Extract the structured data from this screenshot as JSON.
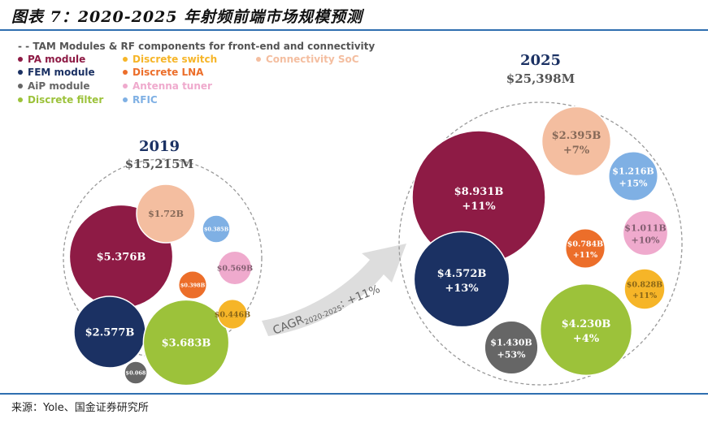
{
  "figure": {
    "title": "图表 7：2020-2025 年射频前端市场规模预测",
    "source": "来源：Yole、国金证券研究所"
  },
  "legend": {
    "header": "TAM Modules & RF components for front-end and connectivity",
    "items": [
      {
        "label": "PA module",
        "color": "#8e1b45"
      },
      {
        "label": "FEM module",
        "color": "#1b3163"
      },
      {
        "label": "AiP module",
        "color": "#666666"
      },
      {
        "label": "Discrete filter",
        "color": "#9cc23a"
      },
      {
        "label": "Discrete switch",
        "color": "#f6b528"
      },
      {
        "label": "Discrete LNA",
        "color": "#ec6e2a"
      },
      {
        "label": "Antenna tuner",
        "color": "#efaacd"
      },
      {
        "label": "RFIC",
        "color": "#7fb0e4"
      },
      {
        "label": "Connectivity SoC",
        "color": "#f4bea0"
      }
    ]
  },
  "chart_data": {
    "type": "bubble",
    "cagr_label": "CAGR",
    "cagr_period": "2020-2025",
    "cagr_value": ": +11%",
    "groups": [
      {
        "year": "2019",
        "total": "$15,215M",
        "bubbles": [
          {
            "category": "PA module",
            "label": "$5.376B",
            "value": 5.376,
            "growth": "",
            "color": "#8e1b45"
          },
          {
            "category": "FEM module",
            "label": "$2.577B",
            "value": 2.577,
            "growth": "",
            "color": "#1b3163"
          },
          {
            "category": "Discrete filter",
            "label": "$3.683B",
            "value": 3.683,
            "growth": "",
            "color": "#9cc23a"
          },
          {
            "category": "Connectivity SoC",
            "label": "$1.72B",
            "value": 1.72,
            "growth": "",
            "color": "#f4bea0"
          },
          {
            "category": "RFIC",
            "label": "$0.385B",
            "value": 0.385,
            "growth": "",
            "color": "#7fb0e4"
          },
          {
            "category": "Antenna tuner",
            "label": "$0.569B",
            "value": 0.569,
            "growth": "",
            "color": "#efaacd"
          },
          {
            "category": "Discrete LNA",
            "label": "$0.398B",
            "value": 0.398,
            "growth": "",
            "color": "#ec6e2a"
          },
          {
            "category": "Discrete switch",
            "label": "$0.446B",
            "value": 0.446,
            "growth": "",
            "color": "#f6b528"
          },
          {
            "category": "AiP module",
            "label": "$0.068",
            "value": 0.068,
            "growth": "",
            "color": "#666666"
          }
        ]
      },
      {
        "year": "2025",
        "total": "$25,398M",
        "bubbles": [
          {
            "category": "PA module",
            "label": "$8.931B",
            "value": 8.931,
            "growth": "+11%",
            "color": "#8e1b45"
          },
          {
            "category": "FEM module",
            "label": "$4.572B",
            "value": 4.572,
            "growth": "+13%",
            "color": "#1b3163"
          },
          {
            "category": "Discrete filter",
            "label": "$4.230B",
            "value": 4.23,
            "growth": "+4%",
            "color": "#9cc23a"
          },
          {
            "category": "AiP module",
            "label": "$1.430B",
            "value": 1.43,
            "growth": "+53%",
            "color": "#666666"
          },
          {
            "category": "Connectivity SoC",
            "label": "$2.395B",
            "value": 2.395,
            "growth": "+7%",
            "color": "#f4bea0"
          },
          {
            "category": "RFIC",
            "label": "$1.216B",
            "value": 1.216,
            "growth": "+15%",
            "color": "#7fb0e4"
          },
          {
            "category": "Antenna tuner",
            "label": "$1.011B",
            "value": 1.011,
            "growth": "+10%",
            "color": "#efaacd"
          },
          {
            "category": "Discrete LNA",
            "label": "$0.784B",
            "value": 0.784,
            "growth": "+11%",
            "color": "#ec6e2a"
          },
          {
            "category": "Discrete switch",
            "label": "$0.828B",
            "value": 0.828,
            "growth": "+11%",
            "color": "#f6b528"
          }
        ]
      }
    ]
  }
}
